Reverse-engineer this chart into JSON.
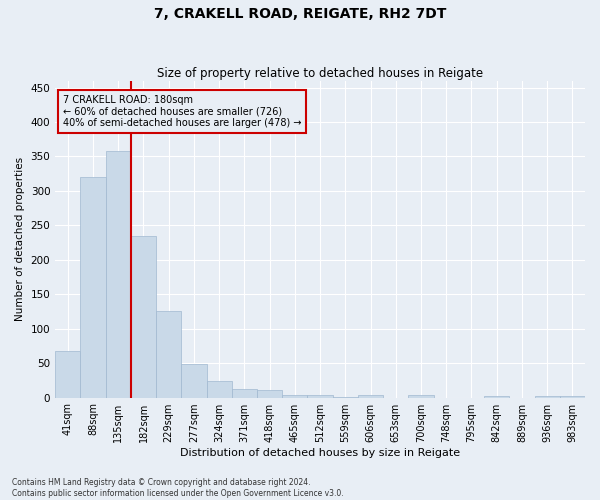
{
  "title": "7, CRAKELL ROAD, REIGATE, RH2 7DT",
  "subtitle": "Size of property relative to detached houses in Reigate",
  "xlabel": "Distribution of detached houses by size in Reigate",
  "ylabel": "Number of detached properties",
  "categories": [
    "41sqm",
    "88sqm",
    "135sqm",
    "182sqm",
    "229sqm",
    "277sqm",
    "324sqm",
    "371sqm",
    "418sqm",
    "465sqm",
    "512sqm",
    "559sqm",
    "606sqm",
    "653sqm",
    "700sqm",
    "748sqm",
    "795sqm",
    "842sqm",
    "889sqm",
    "936sqm",
    "983sqm"
  ],
  "values": [
    67,
    320,
    358,
    235,
    126,
    49,
    24,
    13,
    11,
    4,
    4,
    1,
    4,
    0,
    4,
    0,
    0,
    3,
    0,
    3,
    3
  ],
  "bar_color": "#c9d9e8",
  "bar_edge_color": "#a0b8d0",
  "annotation_title": "7 CRAKELL ROAD: 180sqm",
  "annotation_line1": "← 60% of detached houses are smaller (726)",
  "annotation_line2": "40% of semi-detached houses are larger (478) →",
  "annotation_box_color": "#cc0000",
  "background_color": "#e8eef5",
  "grid_color": "#ffffff",
  "ylim": [
    0,
    460
  ],
  "yticks": [
    0,
    50,
    100,
    150,
    200,
    250,
    300,
    350,
    400,
    450
  ],
  "footer1": "Contains HM Land Registry data © Crown copyright and database right 2024.",
  "footer2": "Contains public sector information licensed under the Open Government Licence v3.0.",
  "title_fontsize": 10,
  "subtitle_fontsize": 8.5,
  "xlabel_fontsize": 8,
  "ylabel_fontsize": 7.5,
  "tick_fontsize": 7,
  "ytick_fontsize": 7.5,
  "annotation_fontsize": 7,
  "footer_fontsize": 5.5
}
